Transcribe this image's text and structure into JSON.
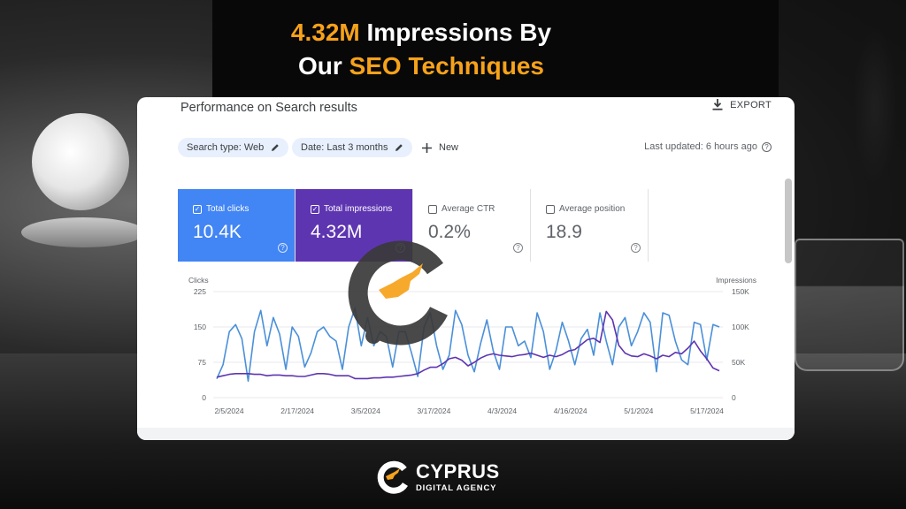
{
  "headline": {
    "line1_highlight": "4.32M",
    "line1_rest": " Impressions By",
    "line2_start": "Our ",
    "line2_highlight": "SEO Techniques"
  },
  "colors": {
    "accent_orange": "#f7a21b",
    "clicks_blue": "#4285f4",
    "impressions_purple": "#5e35b1"
  },
  "panel": {
    "title": "Performance on Search results",
    "export_label": "EXPORT",
    "export_icon": "download-icon",
    "filters": [
      {
        "label": "Search type: Web",
        "icon": "pencil-icon"
      },
      {
        "label": "Date: Last 3 months",
        "icon": "pencil-icon"
      }
    ],
    "new_label": "New",
    "last_updated": "Last updated: 6 hours ago"
  },
  "metrics": [
    {
      "label": "Total clicks",
      "value": "10.4K",
      "checked": true
    },
    {
      "label": "Total impressions",
      "value": "4.32M",
      "checked": true
    },
    {
      "label": "Average CTR",
      "value": "0.2%",
      "checked": false
    },
    {
      "label": "Average position",
      "value": "18.9",
      "checked": false
    }
  ],
  "chart_data": {
    "type": "line",
    "ylabel_left": "Clicks",
    "ylabel_right": "Impressions",
    "left_ticks": [
      "225",
      "150",
      "75",
      "0"
    ],
    "right_ticks": [
      "150K",
      "100K",
      "50K",
      "0"
    ],
    "ylim_left": [
      0,
      225
    ],
    "ylim_right": [
      0,
      150000
    ],
    "x_ticks": [
      "2/5/2024",
      "2/17/2024",
      "3/5/2024",
      "3/17/2024",
      "4/3/2024",
      "4/16/2024",
      "5/1/2024",
      "5/17/2024"
    ],
    "grid": true,
    "series": [
      {
        "name": "Clicks",
        "axis": "left",
        "color": "#4a90d9",
        "values": [
          40,
          70,
          140,
          155,
          125,
          35,
          140,
          185,
          110,
          170,
          135,
          60,
          150,
          130,
          65,
          95,
          140,
          150,
          130,
          120,
          60,
          150,
          190,
          110,
          170,
          110,
          140,
          130,
          65,
          140,
          140,
          95,
          45,
          150,
          180,
          110,
          60,
          90,
          185,
          155,
          90,
          55,
          115,
          165,
          100,
          60,
          150,
          150,
          110,
          120,
          85,
          180,
          140,
          60,
          100,
          160,
          120,
          70,
          125,
          145,
          90,
          180,
          120,
          70,
          150,
          170,
          110,
          140,
          180,
          160,
          55,
          180,
          175,
          120,
          80,
          70,
          160,
          155,
          80,
          155,
          150
        ]
      },
      {
        "name": "Impressions",
        "axis": "right",
        "color": "#5e35b1",
        "values": [
          29000,
          31000,
          33000,
          34000,
          34000,
          34000,
          33000,
          33000,
          31000,
          32000,
          32000,
          31000,
          31000,
          30000,
          30000,
          32000,
          34000,
          34000,
          33000,
          31000,
          31000,
          31000,
          27000,
          27000,
          27000,
          28000,
          28000,
          29000,
          29000,
          30000,
          31000,
          32000,
          34000,
          39000,
          43000,
          43000,
          48000,
          55000,
          57000,
          53000,
          45000,
          50000,
          56000,
          60000,
          62000,
          60000,
          59000,
          58000,
          60000,
          61000,
          63000,
          60000,
          57000,
          60000,
          58000,
          61000,
          66000,
          68000,
          75000,
          82000,
          84000,
          78000,
          122000,
          110000,
          74000,
          63000,
          59000,
          58000,
          62000,
          59000,
          55000,
          60000,
          58000,
          64000,
          62000,
          70000,
          80000,
          66000,
          55000,
          42000,
          38000
        ]
      }
    ]
  },
  "brand": {
    "name": "CYPRUS",
    "tagline": "DIGITAL AGENCY"
  }
}
